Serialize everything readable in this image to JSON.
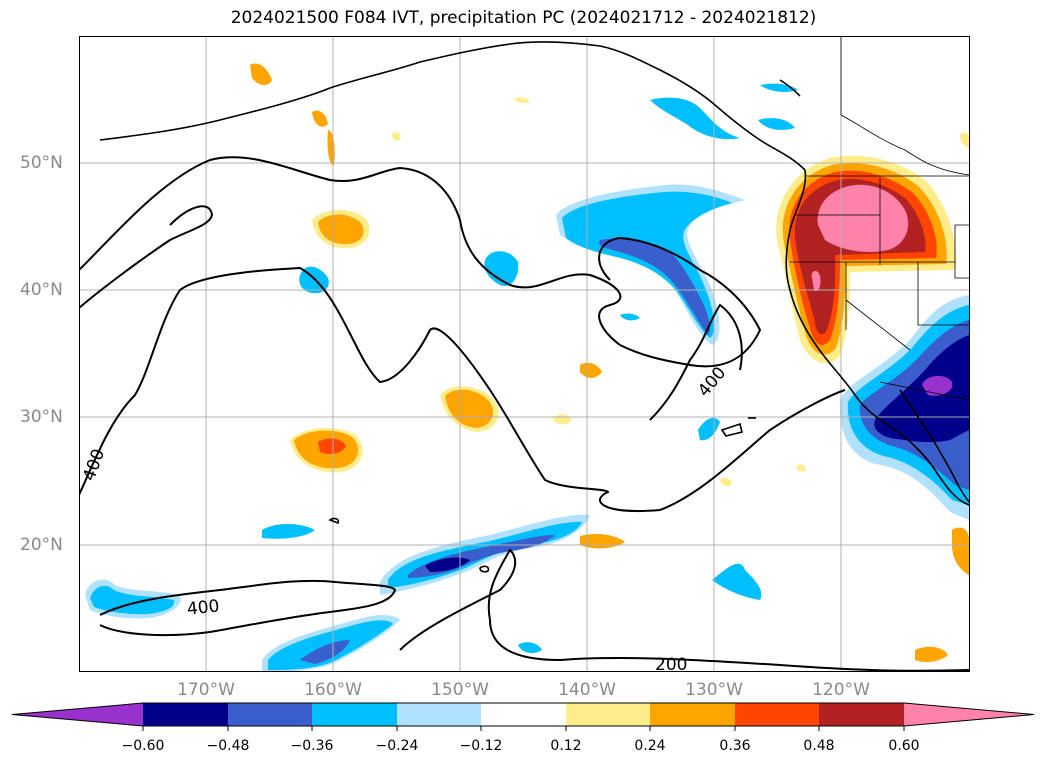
{
  "title": "2024021500 F084 IVT, precipitation PC (2024021712 - 2024021812)",
  "lat_labels": [
    "50°N",
    "40°N",
    "30°N",
    "20°N"
  ],
  "lon_labels": [
    "170°W",
    "160°W",
    "150°W",
    "140°W",
    "130°W",
    "120°W"
  ],
  "colorbar": {
    "ticks": [
      "−0.60",
      "−0.48",
      "−0.36",
      "−0.24",
      "−0.12",
      "0.12",
      "0.24",
      "0.36",
      "0.48",
      "0.60"
    ],
    "colors": [
      "#9932cc",
      "#00008b",
      "#3a5fcd",
      "#00bfff",
      "#b0e2ff",
      "#ffffff",
      "#ffec8b",
      "#ffa500",
      "#ff4500",
      "#b22222",
      "#ff82ab"
    ]
  },
  "contour_labels": [
    "400",
    "400",
    "400",
    "200"
  ],
  "colors": {
    "coast": "#000000",
    "grid": "#b0b0b0",
    "label": "#8a8a8a"
  }
}
